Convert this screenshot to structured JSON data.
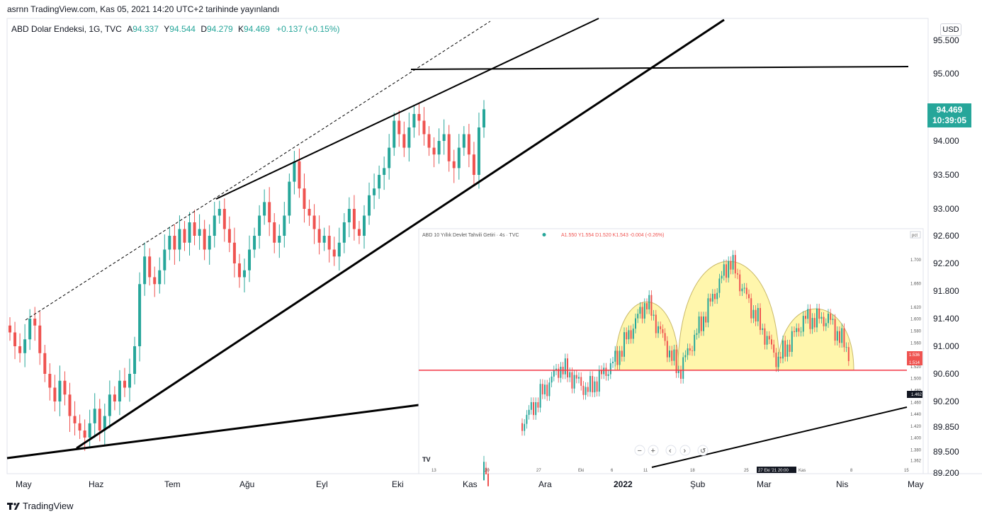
{
  "header": {
    "publish_info": "asrnn TradingView.com, Kas 05, 2021 14:20 UTC+2 tarihinde yayınlandı",
    "symbol": "ABD Dolar Endeksi, 1G, TVC",
    "ohlc": [
      {
        "k": "A",
        "v": "94.337"
      },
      {
        "k": "Y",
        "v": "94.544"
      },
      {
        "k": "D",
        "v": "94.279"
      },
      {
        "k": "K",
        "v": "94.469"
      }
    ],
    "change": "+0.137 (+0.15%)"
  },
  "currency_button": "USD",
  "price_badge": {
    "price": "94.469",
    "countdown": "10:39:05"
  },
  "footer": {
    "logo_text": "TradingView"
  },
  "colors": {
    "up": "#26a69a",
    "down": "#ef5350",
    "inset_line": "#f23645",
    "dome_fill": "#fff59d"
  },
  "chart_data": [
    {
      "type": "candlestick",
      "title": "ABD Dolar Endeksi, 1G, TVC",
      "ylim": [
        89.2,
        96.0
      ],
      "y_ticks": [
        "95.500",
        "95.000",
        "94.000",
        "93.500",
        "93.000",
        "92.600",
        "92.200",
        "91.800",
        "91.400",
        "91.000",
        "90.600",
        "90.200",
        "89.850",
        "89.500",
        "89.200"
      ],
      "x_ticks": [
        {
          "label": "May",
          "bold": false
        },
        {
          "label": "Haz",
          "bold": false
        },
        {
          "label": "Tem",
          "bold": false
        },
        {
          "label": "Ağu",
          "bold": false
        },
        {
          "label": "Eyl",
          "bold": false
        },
        {
          "label": "Eki",
          "bold": false
        },
        {
          "label": "Kas",
          "bold": false
        },
        {
          "label": "Ara",
          "bold": false
        },
        {
          "label": "2022",
          "bold": true
        },
        {
          "label": "Şub",
          "bold": false
        },
        {
          "label": "Mar",
          "bold": false
        },
        {
          "label": "Nis",
          "bold": false
        },
        {
          "label": "May",
          "bold": false
        }
      ],
      "candles_close": [
        91.2,
        91.0,
        90.9,
        91.1,
        91.4,
        91.3,
        90.9,
        90.6,
        90.4,
        90.2,
        90.5,
        90.3,
        90.0,
        89.9,
        89.8,
        89.7,
        89.9,
        90.1,
        89.8,
        90.0,
        90.3,
        90.2,
        90.5,
        90.4,
        90.6,
        91.0,
        91.9,
        92.3,
        92.0,
        91.9,
        92.1,
        92.4,
        92.6,
        92.4,
        92.7,
        92.5,
        92.8,
        92.6,
        92.7,
        92.4,
        92.6,
        92.9,
        93.0,
        92.7,
        92.5,
        92.2,
        92.0,
        92.1,
        92.4,
        92.6,
        92.9,
        93.1,
        92.8,
        92.5,
        92.6,
        92.9,
        93.4,
        93.7,
        93.3,
        93.0,
        92.9,
        92.7,
        92.5,
        92.6,
        92.4,
        92.3,
        92.5,
        92.8,
        93.0,
        92.7,
        92.6,
        92.9,
        93.2,
        93.3,
        93.5,
        93.6,
        93.9,
        94.3,
        94.1,
        93.9,
        94.2,
        94.4,
        94.3,
        94.1,
        93.9,
        93.8,
        94.0,
        94.1,
        93.7,
        93.6,
        93.9,
        94.1,
        93.8,
        93.5,
        94.2,
        94.47
      ],
      "trendlines": [
        {
          "from": [
            "May",
            89.4
          ],
          "to": [
            "Kas",
            90.0
          ],
          "style": "solid"
        },
        {
          "from": [
            "Haz",
            89.5
          ],
          "to": [
            "Mar",
            95.9
          ],
          "style": "solid"
        },
        {
          "from": [
            "Tem",
            92.8
          ],
          "to": [
            "Kas",
            95.9
          ],
          "style": "solid"
        },
        {
          "from": [
            "May",
            91.3
          ],
          "to": [
            "Kas",
            95.9
          ],
          "style": "dashed"
        },
        {
          "from": [
            "Eki",
            95.05
          ],
          "to": [
            "Nis",
            95.1
          ],
          "style": "solid"
        }
      ]
    },
    {
      "type": "candlestick",
      "title": "ABD 10 Yıllık Devlet Tahvili Getiri · 4s · TVC",
      "ohlc_text": "A1.550 Y1.554 D1.520 K1.543 -0.004 (-0.26%)",
      "unit_badge": "pct",
      "ylim": [
        1.34,
        1.72
      ],
      "y_ticks": [
        "1.700",
        "1.660",
        "1.620",
        "1.600",
        "1.580",
        "1.560",
        "1.540",
        "1.520",
        "1.500",
        "1.480",
        "1.460",
        "1.440",
        "1.420",
        "1.400",
        "1.380",
        "1.362"
      ],
      "x_ticks": [
        "13",
        "20",
        "27",
        "Eki",
        "6",
        "11",
        "18",
        "25",
        "27 Eki '21 20:00",
        "Kas",
        "8",
        "15"
      ],
      "price_labels": [
        "1.536",
        "1.514",
        "1.462"
      ],
      "neckline": 1.514,
      "shoulders_domes": [
        {
          "peak": 1.632
        },
        {
          "peak": 1.702
        },
        {
          "peak": 1.62
        }
      ]
    }
  ]
}
